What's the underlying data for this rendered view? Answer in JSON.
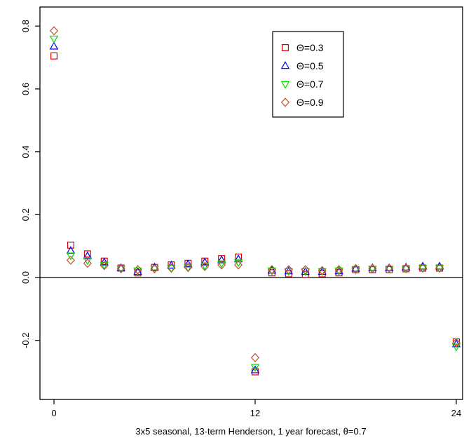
{
  "chart_data": {
    "type": "scatter",
    "title": "",
    "xlabel": "3x5 seasonal, 13-term Henderson, 1 year forecast, θ=0.7",
    "ylabel": "",
    "xlim": [
      -1,
      25
    ],
    "ylim": [
      -0.35,
      0.82
    ],
    "xticks": [
      0,
      12,
      24
    ],
    "xtick_labels": [
      "0",
      "12",
      "24"
    ],
    "yticks": [
      -0.2,
      0.0,
      0.2,
      0.4,
      0.6,
      0.8
    ],
    "ytick_labels": [
      "-0.2",
      "0.0",
      "0.2",
      "0.4",
      "0.6",
      "0.8"
    ],
    "reference_line": 0,
    "grid": false,
    "legend_position": "top-right",
    "x": [
      0,
      1,
      2,
      3,
      4,
      5,
      6,
      7,
      8,
      9,
      10,
      11,
      12,
      13,
      14,
      15,
      16,
      17,
      18,
      19,
      20,
      21,
      22,
      23,
      24
    ],
    "series": [
      {
        "name": "Θ=0.3",
        "marker": "square",
        "color": "#dd0000",
        "values": [
          0.705,
          0.103,
          0.075,
          0.052,
          0.03,
          0.015,
          0.032,
          0.04,
          0.045,
          0.052,
          0.06,
          0.065,
          -0.3,
          0.015,
          0.012,
          0.01,
          0.012,
          0.015,
          0.025,
          0.025,
          0.025,
          0.028,
          0.03,
          0.03,
          -0.205
        ]
      },
      {
        "name": "Θ=0.5",
        "marker": "triangle-up",
        "color": "#0000ff",
        "values": [
          0.735,
          0.085,
          0.068,
          0.048,
          0.03,
          0.018,
          0.032,
          0.038,
          0.042,
          0.048,
          0.055,
          0.058,
          -0.295,
          0.022,
          0.02,
          0.018,
          0.018,
          0.02,
          0.028,
          0.03,
          0.03,
          0.032,
          0.035,
          0.035,
          -0.212
        ]
      },
      {
        "name": "Θ=0.7",
        "marker": "triangle-down",
        "color": "#00dd00",
        "values": [
          0.76,
          0.07,
          0.055,
          0.04,
          0.028,
          0.022,
          0.028,
          0.03,
          0.032,
          0.038,
          0.045,
          0.048,
          -0.285,
          0.022,
          0.02,
          0.02,
          0.02,
          0.022,
          0.025,
          0.028,
          0.028,
          0.028,
          0.03,
          0.03,
          -0.22
        ]
      },
      {
        "name": "Θ=0.9",
        "marker": "diamond",
        "color": "#c05030",
        "values": [
          0.785,
          0.055,
          0.045,
          0.038,
          0.028,
          0.025,
          0.028,
          0.03,
          0.032,
          0.035,
          0.04,
          0.04,
          -0.255,
          0.025,
          0.025,
          0.025,
          0.022,
          0.025,
          0.028,
          0.028,
          0.03,
          0.03,
          0.03,
          0.03,
          -0.208
        ]
      }
    ]
  }
}
